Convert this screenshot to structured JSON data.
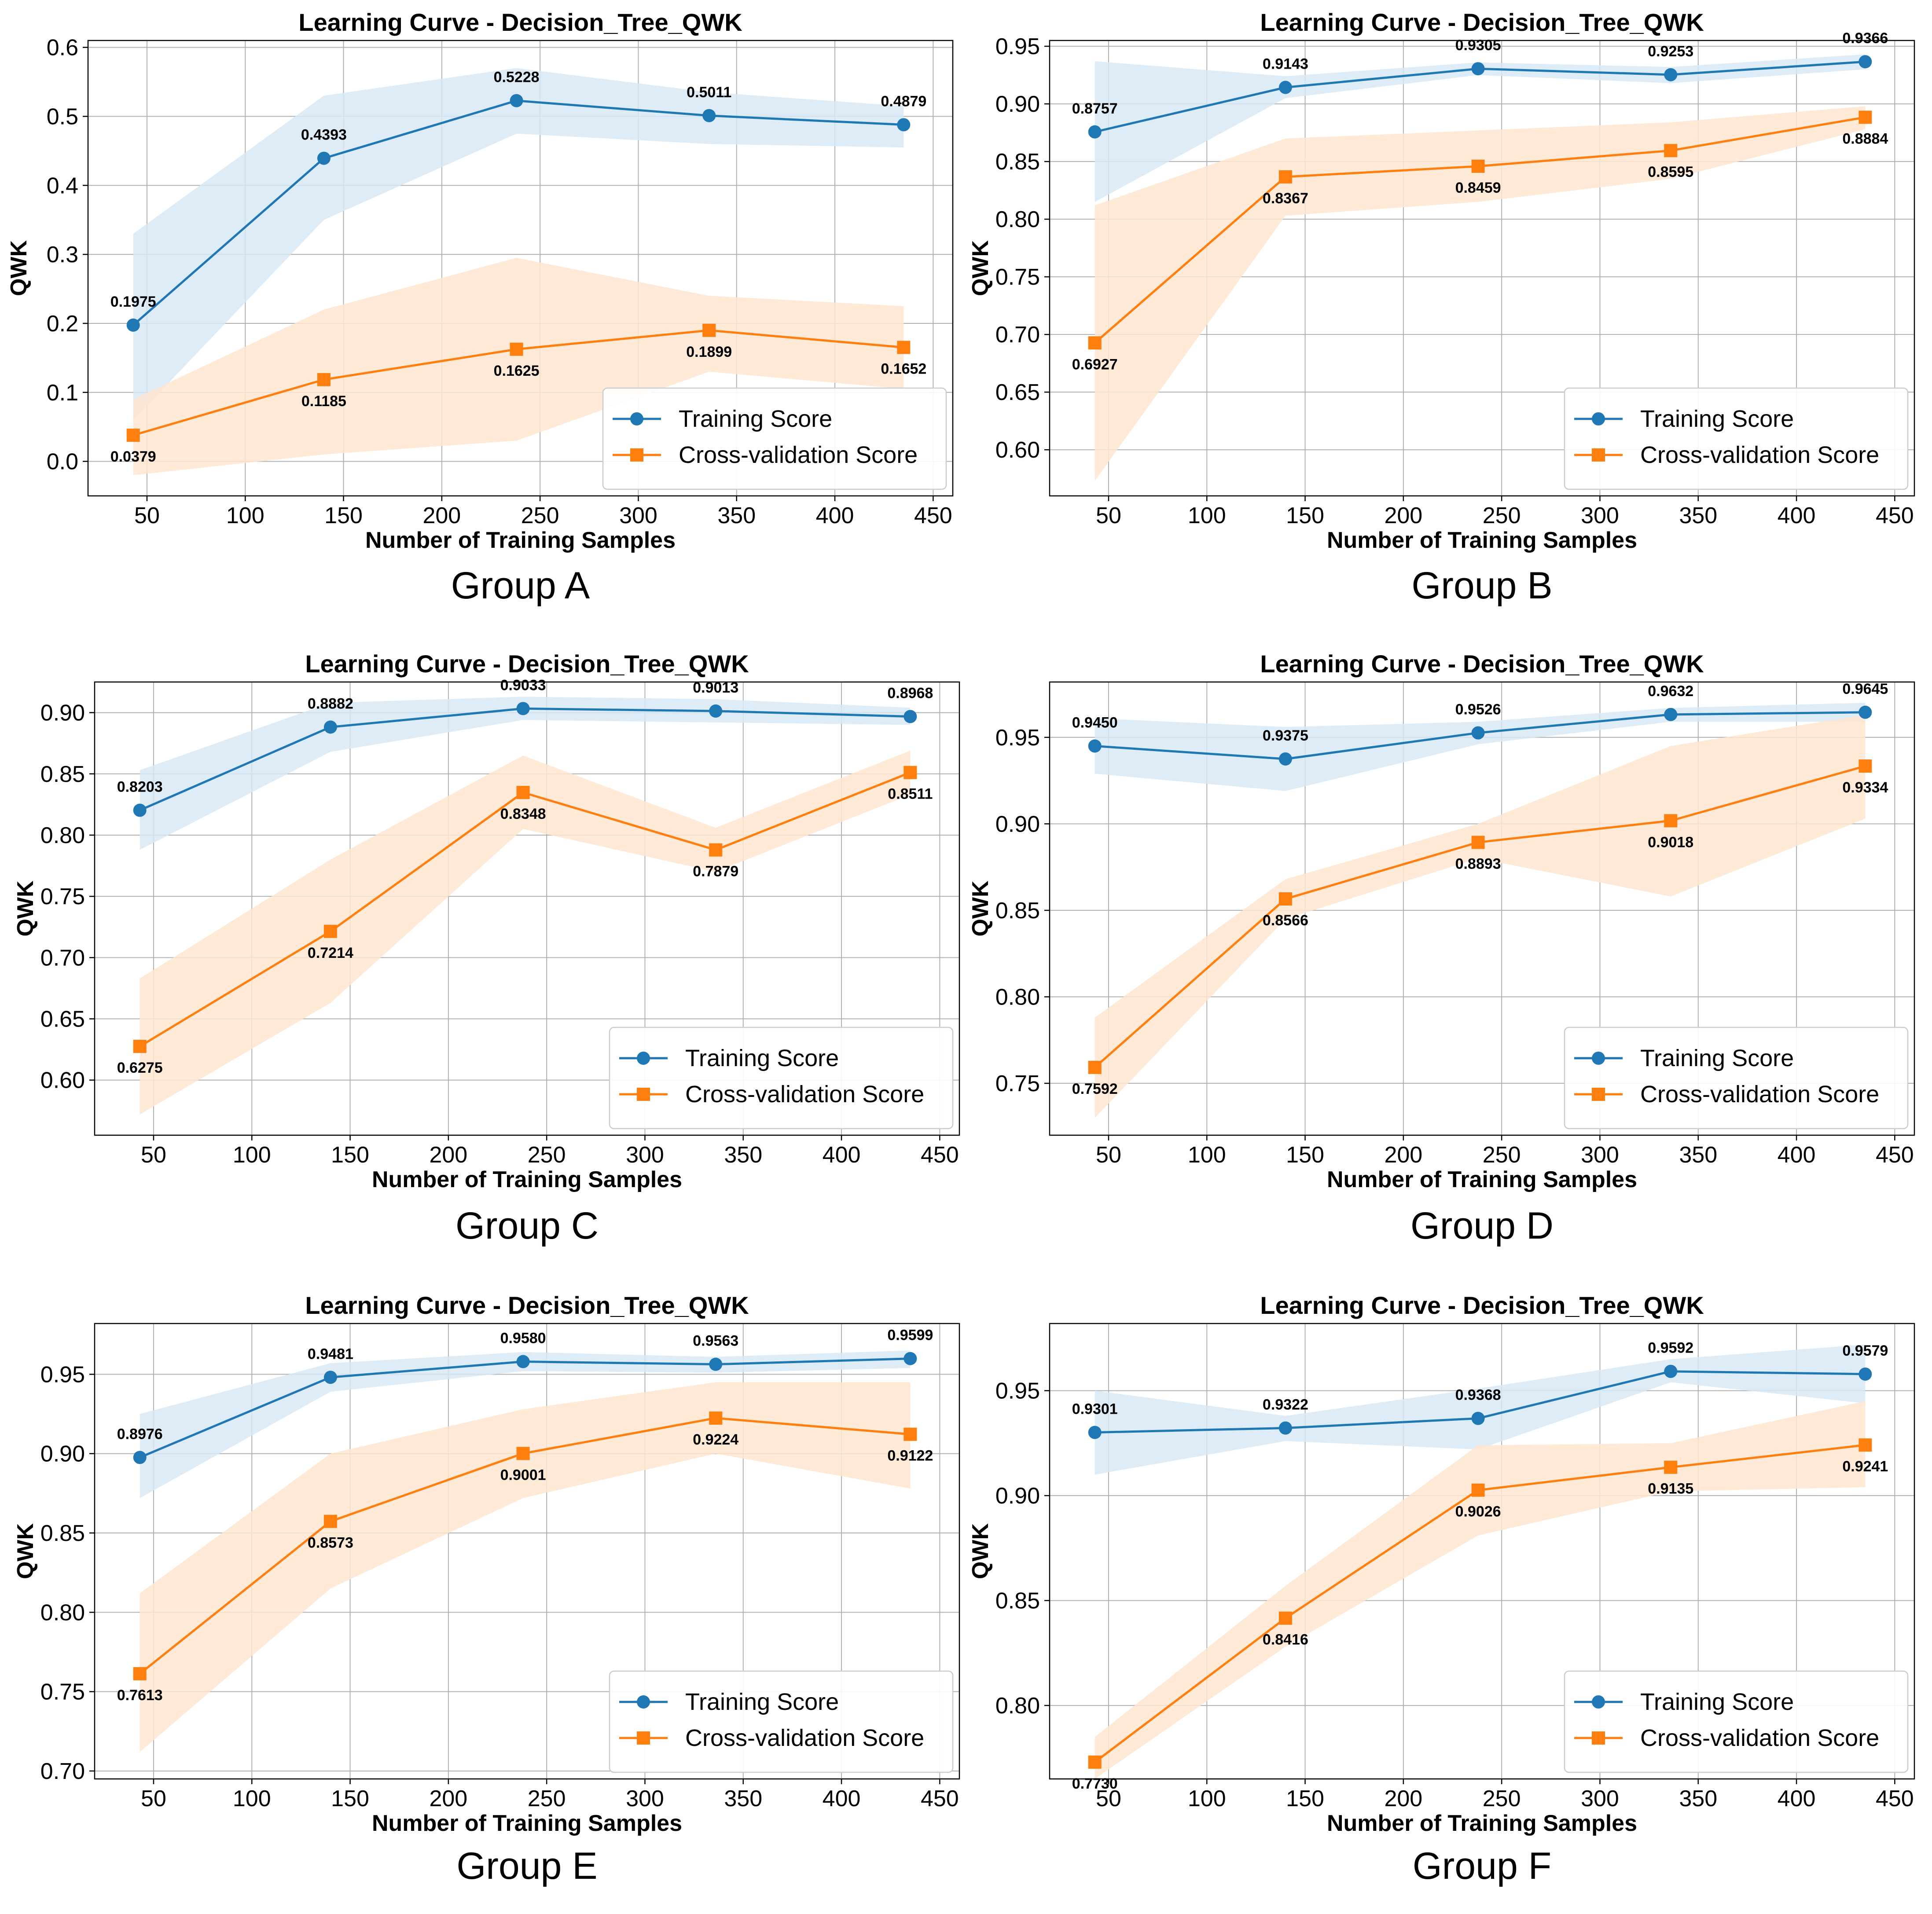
{
  "colors": {
    "training": "#1f77b4",
    "training_band": "#d7e9f6",
    "cv": "#ff7f0e",
    "cv_band": "#ffe5d0",
    "grid": "#b0b0b0"
  },
  "chart_data": [
    {
      "type": "line",
      "group_label": "Group A",
      "title": "Learning Curve - Decision_Tree_QWK",
      "xlabel": "Number of Training Samples",
      "ylabel": "QWK",
      "xlim": [
        20,
        460
      ],
      "ylim": [
        -0.05,
        0.61
      ],
      "xticks": [
        50,
        100,
        150,
        200,
        250,
        300,
        350,
        400,
        450
      ],
      "yticks": [
        0.0,
        0.1,
        0.2,
        0.3,
        0.4,
        0.5,
        0.6
      ],
      "ytick_labels": [
        "0.0",
        "0.1",
        "0.2",
        "0.3",
        "0.4",
        "0.5",
        "0.6"
      ],
      "grid": true,
      "legend_position": "lower-right",
      "x": [
        43,
        140,
        238,
        336,
        435
      ],
      "series": [
        {
          "name": "Training Score",
          "values": [
            0.1975,
            0.4393,
            0.5228,
            0.5011,
            0.4879
          ],
          "labels": [
            "0.1975",
            "0.4393",
            "0.5228",
            "0.5011",
            "0.4879"
          ],
          "band_low": [
            0.06,
            0.35,
            0.475,
            0.46,
            0.455
          ],
          "band_high": [
            0.33,
            0.53,
            0.57,
            0.535,
            0.515
          ]
        },
        {
          "name": "Cross-validation Score",
          "values": [
            0.0379,
            0.1185,
            0.1625,
            0.1899,
            0.1652
          ],
          "labels": [
            "0.0379",
            "0.1185",
            "0.1625",
            "0.1899",
            "0.1652"
          ],
          "band_low": [
            -0.02,
            0.01,
            0.03,
            0.13,
            0.105
          ],
          "band_high": [
            0.09,
            0.22,
            0.295,
            0.24,
            0.225
          ]
        }
      ]
    },
    {
      "type": "line",
      "group_label": "Group B",
      "title": "Learning Curve - Decision_Tree_QWK",
      "xlabel": "Number of Training Samples",
      "ylabel": "QWK",
      "xlim": [
        20,
        460
      ],
      "ylim": [
        0.56,
        0.955
      ],
      "xticks": [
        50,
        100,
        150,
        200,
        250,
        300,
        350,
        400,
        450
      ],
      "yticks": [
        0.6,
        0.65,
        0.7,
        0.75,
        0.8,
        0.85,
        0.9,
        0.95
      ],
      "ytick_labels": [
        "0.60",
        "0.65",
        "0.70",
        "0.75",
        "0.80",
        "0.85",
        "0.90",
        "0.95"
      ],
      "grid": true,
      "legend_position": "lower-right",
      "x": [
        43,
        140,
        238,
        336,
        435
      ],
      "series": [
        {
          "name": "Training Score",
          "values": [
            0.8757,
            0.9143,
            0.9305,
            0.9253,
            0.9366
          ],
          "labels": [
            "0.8757",
            "0.9143",
            "0.9305",
            "0.9253",
            "0.9366"
          ],
          "band_low": [
            0.815,
            0.905,
            0.925,
            0.918,
            0.93
          ],
          "band_high": [
            0.937,
            0.924,
            0.936,
            0.932,
            0.943
          ]
        },
        {
          "name": "Cross-validation Score",
          "values": [
            0.6927,
            0.8367,
            0.8459,
            0.8595,
            0.8884
          ],
          "labels": [
            "0.6927",
            "0.8367",
            "0.8459",
            "0.8595",
            "0.8884"
          ],
          "band_low": [
            0.573,
            0.803,
            0.815,
            0.835,
            0.878
          ],
          "band_high": [
            0.812,
            0.87,
            0.877,
            0.884,
            0.898
          ]
        }
      ]
    },
    {
      "type": "line",
      "group_label": "Group C",
      "title": "Learning Curve - Decision_Tree_QWK",
      "xlabel": "Number of Training Samples",
      "ylabel": "QWK",
      "xlim": [
        20,
        460
      ],
      "ylim": [
        0.555,
        0.925
      ],
      "xticks": [
        50,
        100,
        150,
        200,
        250,
        300,
        350,
        400,
        450
      ],
      "yticks": [
        0.6,
        0.65,
        0.7,
        0.75,
        0.8,
        0.85,
        0.9
      ],
      "ytick_labels": [
        "0.60",
        "0.65",
        "0.70",
        "0.75",
        "0.80",
        "0.85",
        "0.90"
      ],
      "grid": true,
      "legend_position": "lower-right",
      "x": [
        43,
        140,
        238,
        336,
        435
      ],
      "series": [
        {
          "name": "Training Score",
          "values": [
            0.8203,
            0.8882,
            0.9033,
            0.9013,
            0.8968
          ],
          "labels": [
            "0.8203",
            "0.8882",
            "0.9033",
            "0.9013",
            "0.8968"
          ],
          "band_low": [
            0.788,
            0.868,
            0.894,
            0.892,
            0.89
          ],
          "band_high": [
            0.853,
            0.908,
            0.913,
            0.911,
            0.904
          ]
        },
        {
          "name": "Cross-validation Score",
          "values": [
            0.6275,
            0.7214,
            0.8348,
            0.7879,
            0.8511
          ],
          "labels": [
            "0.6275",
            "0.7214",
            "0.8348",
            "0.7879",
            "0.8511"
          ],
          "band_low": [
            0.572,
            0.663,
            0.805,
            0.77,
            0.833
          ],
          "band_high": [
            0.683,
            0.78,
            0.865,
            0.806,
            0.869
          ]
        }
      ]
    },
    {
      "type": "line",
      "group_label": "Group D",
      "title": "Learning Curve - Decision_Tree_QWK",
      "xlabel": "Number of Training Samples",
      "ylabel": "QWK",
      "xlim": [
        20,
        460
      ],
      "ylim": [
        0.72,
        0.982
      ],
      "xticks": [
        50,
        100,
        150,
        200,
        250,
        300,
        350,
        400,
        450
      ],
      "yticks": [
        0.75,
        0.8,
        0.85,
        0.9,
        0.95
      ],
      "ytick_labels": [
        "0.75",
        "0.80",
        "0.85",
        "0.90",
        "0.95"
      ],
      "grid": true,
      "legend_position": "lower-right",
      "x": [
        43,
        140,
        238,
        336,
        435
      ],
      "series": [
        {
          "name": "Training Score",
          "values": [
            0.945,
            0.9375,
            0.9526,
            0.9632,
            0.9645
          ],
          "labels": [
            "0.9450",
            "0.9375",
            "0.9526",
            "0.9632",
            "0.9645"
          ],
          "band_low": [
            0.929,
            0.919,
            0.946,
            0.959,
            0.959
          ],
          "band_high": [
            0.961,
            0.956,
            0.959,
            0.967,
            0.97
          ]
        },
        {
          "name": "Cross-validation Score",
          "values": [
            0.7592,
            0.8566,
            0.8893,
            0.9018,
            0.9334
          ],
          "labels": [
            "0.7592",
            "0.8566",
            "0.8893",
            "0.9018",
            "0.9334"
          ],
          "band_low": [
            0.73,
            0.845,
            0.88,
            0.858,
            0.903
          ],
          "band_high": [
            0.788,
            0.868,
            0.9,
            0.945,
            0.963
          ]
        }
      ]
    },
    {
      "type": "line",
      "group_label": "Group E",
      "title": "Learning Curve - Decision_Tree_QWK",
      "xlabel": "Number of Training Samples",
      "ylabel": "QWK",
      "xlim": [
        20,
        460
      ],
      "ylim": [
        0.695,
        0.982
      ],
      "xticks": [
        50,
        100,
        150,
        200,
        250,
        300,
        350,
        400,
        450
      ],
      "yticks": [
        0.7,
        0.75,
        0.8,
        0.85,
        0.9,
        0.95
      ],
      "ytick_labels": [
        "0.70",
        "0.75",
        "0.80",
        "0.85",
        "0.90",
        "0.95"
      ],
      "grid": true,
      "legend_position": "lower-right",
      "x": [
        43,
        140,
        238,
        336,
        435
      ],
      "series": [
        {
          "name": "Training Score",
          "values": [
            0.8976,
            0.9481,
            0.958,
            0.9563,
            0.9599
          ],
          "labels": [
            "0.8976",
            "0.9481",
            "0.9580",
            "0.9563",
            "0.9599"
          ],
          "band_low": [
            0.872,
            0.939,
            0.952,
            0.951,
            0.954
          ],
          "band_high": [
            0.925,
            0.957,
            0.964,
            0.961,
            0.965
          ]
        },
        {
          "name": "Cross-validation Score",
          "values": [
            0.7613,
            0.8573,
            0.9001,
            0.9224,
            0.9122
          ],
          "labels": [
            "0.7613",
            "0.8573",
            "0.9001",
            "0.9224",
            "0.9122"
          ],
          "band_low": [
            0.712,
            0.815,
            0.872,
            0.9,
            0.878
          ],
          "band_high": [
            0.812,
            0.9,
            0.928,
            0.945,
            0.945
          ]
        }
      ]
    },
    {
      "type": "line",
      "group_label": "Group F",
      "title": "Learning Curve - Decision_Tree_QWK",
      "xlabel": "Number of Training Samples",
      "ylabel": "QWK",
      "xlim": [
        20,
        460
      ],
      "ylim": [
        0.765,
        0.982
      ],
      "xticks": [
        50,
        100,
        150,
        200,
        250,
        300,
        350,
        400,
        450
      ],
      "yticks": [
        0.8,
        0.85,
        0.9,
        0.95
      ],
      "ytick_labels": [
        "0.80",
        "0.85",
        "0.90",
        "0.95"
      ],
      "grid": true,
      "legend_position": "lower-right",
      "x": [
        43,
        140,
        238,
        336,
        435
      ],
      "series": [
        {
          "name": "Training Score",
          "values": [
            0.9301,
            0.9322,
            0.9368,
            0.9592,
            0.9579
          ],
          "labels": [
            "0.9301",
            "0.9322",
            "0.9368",
            "0.9592",
            "0.9579"
          ],
          "band_low": [
            0.91,
            0.926,
            0.922,
            0.954,
            0.944
          ],
          "band_high": [
            0.95,
            0.938,
            0.951,
            0.965,
            0.972
          ]
        },
        {
          "name": "Cross-validation Score",
          "values": [
            0.773,
            0.8416,
            0.9026,
            0.9135,
            0.9241
          ],
          "labels": [
            "0.7730",
            "0.8416",
            "0.9026",
            "0.9135",
            "0.9241"
          ],
          "band_low": [
            0.765,
            0.828,
            0.881,
            0.902,
            0.904
          ],
          "band_high": [
            0.785,
            0.857,
            0.924,
            0.925,
            0.945
          ]
        }
      ]
    }
  ]
}
